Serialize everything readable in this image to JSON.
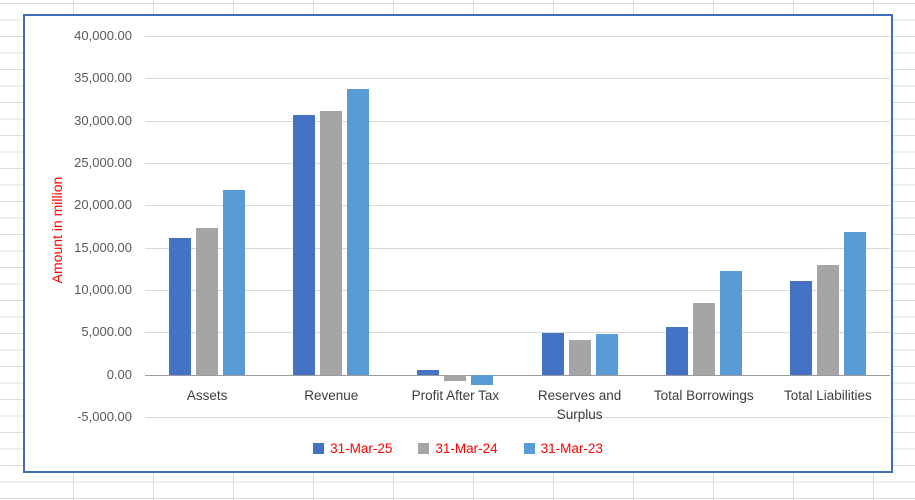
{
  "chart_data": {
    "type": "bar",
    "title": "",
    "xlabel": "",
    "ylabel": "Amount in million",
    "ylabel_color": "#FF0000",
    "categories": [
      "Assets",
      "Revenue",
      "Profit After Tax",
      "Reserves and Surplus",
      "Total Borrowings",
      "Total Liabilities"
    ],
    "series": [
      {
        "name": "31-Mar-25",
        "color": "#4472C4",
        "values": [
          16100,
          30700,
          550,
          4900,
          5600,
          11100
        ]
      },
      {
        "name": "31-Mar-24",
        "color": "#A5A5A5",
        "values": [
          17300,
          31200,
          -700,
          4100,
          8500,
          12900
        ]
      },
      {
        "name": "31-Mar-23",
        "color": "#5B9BD5",
        "values": [
          21800,
          33700,
          -1200,
          4800,
          12300,
          16900
        ]
      }
    ],
    "ylim": [
      -5000,
      40000
    ],
    "ytick_step": 5000,
    "ytick_labels": [
      "40,000.00",
      "35,000.00",
      "30,000.00",
      "25,000.00",
      "20,000.00",
      "15,000.00",
      "10,000.00",
      "5,000.00",
      "0.00",
      "-5,000.00"
    ],
    "grid": true,
    "legend_position": "bottom",
    "legend_text_color": "#FF0000",
    "colors": {
      "gridline": "#D9D9D9",
      "axis_line": "#9B9B9B",
      "tick_label": "#595959",
      "category_label": "#3D3D3D",
      "chart_border": "#3F6FB6",
      "sheet_gridline": "#DCDCDC"
    }
  }
}
